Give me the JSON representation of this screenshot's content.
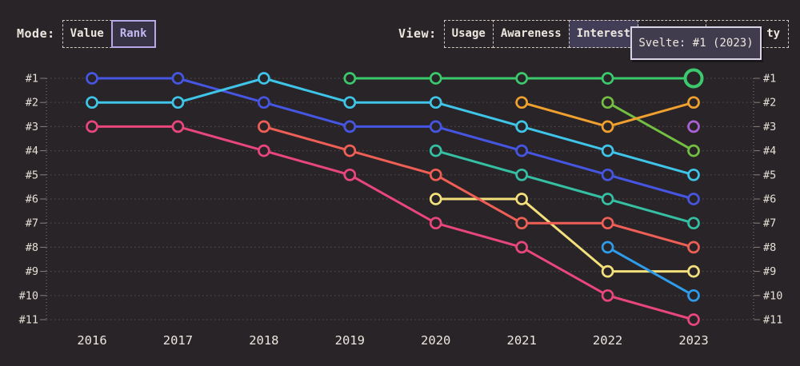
{
  "header": {
    "mode_label": "Mode:",
    "mode_options": [
      {
        "label": "Value",
        "selected": false
      },
      {
        "label": "Rank",
        "selected": true
      }
    ],
    "view_label": "View:",
    "view_options": [
      {
        "label": "Usage",
        "selected": false
      },
      {
        "label": "Awareness",
        "selected": false
      },
      {
        "label": "Interest",
        "selected": true
      },
      {
        "label": "",
        "selected": false,
        "obscured_by_tooltip": true
      },
      {
        "label": "ty",
        "selected": false,
        "partially_obscured": true
      }
    ]
  },
  "tooltip": {
    "text": "Svelte: #1 (2023)"
  },
  "colors": {
    "background": "#282428",
    "text": "#ece7df",
    "axis_text": "#e5e0d6",
    "grid": "#4f4a4b",
    "axis": "#85807a"
  },
  "chart_data": {
    "type": "line",
    "variant": "bump-rank-chart",
    "title": "",
    "xlabel": "",
    "ylabel": "",
    "grid": true,
    "x": [
      2016,
      2017,
      2018,
      2019,
      2020,
      2021,
      2022,
      2023
    ],
    "y_axis": {
      "labels": [
        "#1",
        "#2",
        "#3",
        "#4",
        "#5",
        "#6",
        "#7",
        "#8",
        "#9",
        "#10",
        "#11"
      ],
      "min": 1,
      "max": 11,
      "inverted": true,
      "shown_on": "both-sides"
    },
    "highlight": {
      "series_label": "Svelte",
      "year": 2023,
      "rank": 1
    },
    "series": [
      {
        "name": "series-blue",
        "label": null,
        "color": "#4656e2",
        "points": [
          [
            2016,
            1
          ],
          [
            2017,
            1
          ],
          [
            2018,
            2
          ],
          [
            2019,
            3
          ],
          [
            2020,
            3
          ],
          [
            2021,
            4
          ],
          [
            2022,
            5
          ],
          [
            2023,
            6
          ]
        ]
      },
      {
        "name": "series-yellow",
        "label": null,
        "color": "#f3e07c",
        "points": [
          [
            2020,
            6
          ],
          [
            2021,
            6
          ],
          [
            2022,
            9
          ],
          [
            2023,
            9
          ]
        ]
      },
      {
        "name": "series-cyan",
        "label": null,
        "color": "#3fc5e8",
        "points": [
          [
            2016,
            2
          ],
          [
            2017,
            2
          ],
          [
            2018,
            1
          ],
          [
            2019,
            2
          ],
          [
            2020,
            2
          ],
          [
            2021,
            3
          ],
          [
            2022,
            4
          ],
          [
            2023,
            5
          ]
        ]
      },
      {
        "name": "series-teal",
        "label": null,
        "color": "#35bfa3",
        "points": [
          [
            2020,
            4
          ],
          [
            2021,
            5
          ],
          [
            2022,
            6
          ],
          [
            2023,
            7
          ]
        ]
      },
      {
        "name": "series-pink",
        "label": null,
        "color": "#e9467c",
        "points": [
          [
            2016,
            3
          ],
          [
            2017,
            3
          ],
          [
            2018,
            4
          ],
          [
            2019,
            5
          ],
          [
            2020,
            7
          ],
          [
            2021,
            8
          ],
          [
            2022,
            10
          ],
          [
            2023,
            11
          ]
        ]
      },
      {
        "name": "series-salmon",
        "label": null,
        "color": "#ef5f56",
        "points": [
          [
            2018,
            3
          ],
          [
            2019,
            4
          ],
          [
            2020,
            5
          ],
          [
            2021,
            7
          ],
          [
            2022,
            7
          ],
          [
            2023,
            8
          ]
        ]
      },
      {
        "name": "series-green",
        "label": "Svelte",
        "color": "#3cc96e",
        "points": [
          [
            2019,
            1
          ],
          [
            2020,
            1
          ],
          [
            2021,
            1
          ],
          [
            2022,
            1
          ],
          [
            2023,
            1
          ]
        ]
      },
      {
        "name": "series-lightgreen",
        "label": null,
        "color": "#72bf41",
        "points": [
          [
            2022,
            2
          ],
          [
            2023,
            4
          ]
        ]
      },
      {
        "name": "series-orange",
        "label": null,
        "color": "#efa02e",
        "points": [
          [
            2021,
            2
          ],
          [
            2022,
            3
          ],
          [
            2023,
            2
          ]
        ]
      },
      {
        "name": "series-skyblue",
        "label": null,
        "color": "#2e9ce8",
        "points": [
          [
            2022,
            8
          ],
          [
            2023,
            10
          ]
        ]
      },
      {
        "name": "series-purple",
        "label": null,
        "color": "#ab61d5",
        "points": [
          [
            2023,
            3
          ]
        ]
      }
    ]
  }
}
